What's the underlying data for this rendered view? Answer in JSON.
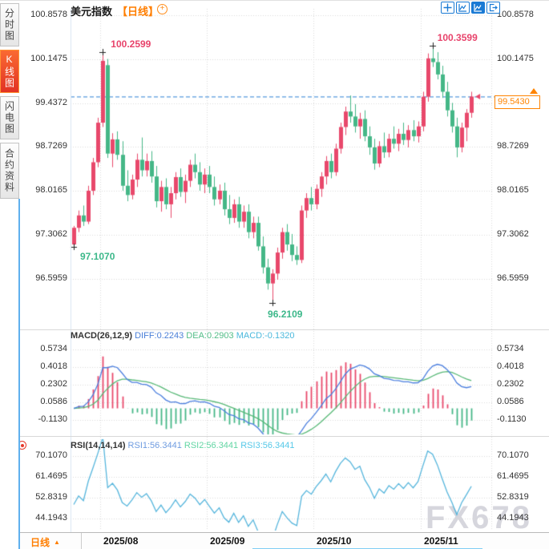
{
  "sidebar": {
    "tabs": [
      {
        "label": "分时图",
        "active": false
      },
      {
        "label": "K线图",
        "active": true
      },
      {
        "label": "闪电图",
        "active": false
      },
      {
        "label": "合约资料",
        "active": false
      }
    ]
  },
  "header": {
    "title": "美元指数",
    "period_tag": "【日线】",
    "plus_icon": "circle-plus"
  },
  "toolbar": {
    "icons": [
      "crosshair",
      "indicator-window",
      "chart-style",
      "exit-chart"
    ]
  },
  "ui": {
    "price_box": "99.5430",
    "macd_header": {
      "name": "MACD(26,12,9)",
      "diff": "DIFF:0.2243",
      "dea": "DEA:0.2903",
      "macd": "MACD:-0.1320"
    },
    "rsi_header": {
      "name": "RSI(14,14,14)",
      "rsi1": "RSI1:56.3441",
      "rsi2": "RSI2:56.3441",
      "rsi3": "RSI3:56.3441"
    },
    "bottom": {
      "period": "日线",
      "months": [
        "2025/08",
        "2025/09",
        "2025/10",
        "2025/11"
      ]
    },
    "watermark": "FX678",
    "indicator_icon": "red-circle-dot"
  },
  "chart_data": {
    "type": "candlestick",
    "title": "美元指数 日线 (US Dollar Index, daily)",
    "price_axis": [
      "100.8578",
      "100.1475",
      "99.4372",
      "98.7269",
      "98.0165",
      "97.3062",
      "96.5959"
    ],
    "current_price": 99.543,
    "current_price_label": "99.5430",
    "x_months": [
      "2025/08",
      "2025/09",
      "2025/10",
      "2025/11"
    ],
    "month_start_indices": [
      6,
      28,
      50,
      72
    ],
    "candles_format": [
      "open",
      "high",
      "low",
      "close"
    ],
    "candles": [
      [
        97.15,
        97.45,
        97.107,
        97.42
      ],
      [
        97.42,
        97.7,
        97.35,
        97.62
      ],
      [
        97.62,
        97.78,
        97.45,
        97.52
      ],
      [
        97.52,
        98.1,
        97.48,
        98.02
      ],
      [
        98.02,
        98.55,
        97.95,
        98.48
      ],
      [
        98.48,
        99.2,
        98.4,
        99.12
      ],
      [
        99.12,
        100.2599,
        99.05,
        100.12
      ],
      [
        100.05,
        100.15,
        98.55,
        98.62
      ],
      [
        98.62,
        98.95,
        98.4,
        98.85
      ],
      [
        98.85,
        98.98,
        98.52,
        98.6
      ],
      [
        98.6,
        98.82,
        98.02,
        98.1
      ],
      [
        98.1,
        98.35,
        97.85,
        97.95
      ],
      [
        97.95,
        98.28,
        97.88,
        98.2
      ],
      [
        98.2,
        98.62,
        98.08,
        98.52
      ],
      [
        98.52,
        98.88,
        98.25,
        98.35
      ],
      [
        98.35,
        98.62,
        98.25,
        98.5
      ],
      [
        98.5,
        98.66,
        98.15,
        98.25
      ],
      [
        98.25,
        98.42,
        97.75,
        97.85
      ],
      [
        97.85,
        98.18,
        97.68,
        98.08
      ],
      [
        98.08,
        98.22,
        97.72,
        97.8
      ],
      [
        97.8,
        98.08,
        97.58,
        97.98
      ],
      [
        97.98,
        98.32,
        97.88,
        98.24
      ],
      [
        98.24,
        98.38,
        97.92,
        98.0
      ],
      [
        98.0,
        98.28,
        97.82,
        98.18
      ],
      [
        98.18,
        98.52,
        98.08,
        98.44
      ],
      [
        98.44,
        98.62,
        98.22,
        98.32
      ],
      [
        98.32,
        98.48,
        98.02,
        98.12
      ],
      [
        98.12,
        98.38,
        97.98,
        98.28
      ],
      [
        98.28,
        98.42,
        97.98,
        98.08
      ],
      [
        98.08,
        98.25,
        97.78,
        97.88
      ],
      [
        97.88,
        98.12,
        97.8,
        98.02
      ],
      [
        98.02,
        98.15,
        97.62,
        97.72
      ],
      [
        97.72,
        97.95,
        97.48,
        97.58
      ],
      [
        97.58,
        97.88,
        97.5,
        97.8
      ],
      [
        97.8,
        97.92,
        97.42,
        97.52
      ],
      [
        97.52,
        97.78,
        97.42,
        97.68
      ],
      [
        97.68,
        97.8,
        97.25,
        97.35
      ],
      [
        97.35,
        97.6,
        97.25,
        97.5
      ],
      [
        97.5,
        97.6,
        97.05,
        97.12
      ],
      [
        97.12,
        97.28,
        96.68,
        96.78
      ],
      [
        96.78,
        96.92,
        96.42,
        96.52
      ],
      [
        96.52,
        96.75,
        96.2109,
        96.68
      ],
      [
        96.68,
        97.1,
        96.58,
        97.02
      ],
      [
        97.02,
        97.42,
        96.92,
        97.35
      ],
      [
        97.35,
        97.48,
        97.05,
        97.15
      ],
      [
        97.15,
        97.32,
        96.88,
        96.98
      ],
      [
        96.98,
        97.12,
        96.82,
        96.9
      ],
      [
        96.9,
        97.78,
        96.85,
        97.7
      ],
      [
        97.7,
        97.98,
        97.58,
        97.9
      ],
      [
        97.9,
        98.08,
        97.7,
        97.8
      ],
      [
        97.8,
        98.12,
        97.72,
        98.05
      ],
      [
        98.05,
        98.32,
        97.92,
        98.25
      ],
      [
        98.25,
        98.58,
        98.12,
        98.5
      ],
      [
        98.5,
        98.62,
        98.22,
        98.32
      ],
      [
        98.32,
        98.78,
        98.26,
        98.7
      ],
      [
        98.7,
        99.12,
        98.62,
        99.05
      ],
      [
        99.05,
        99.38,
        98.92,
        99.3
      ],
      [
        99.3,
        99.56,
        99.12,
        99.22
      ],
      [
        99.22,
        99.42,
        98.96,
        99.06
      ],
      [
        99.06,
        99.28,
        98.86,
        99.18
      ],
      [
        99.18,
        99.32,
        98.82,
        98.9
      ],
      [
        98.9,
        99.06,
        98.6,
        98.72
      ],
      [
        98.72,
        98.86,
        98.36,
        98.46
      ],
      [
        98.46,
        98.82,
        98.4,
        98.74
      ],
      [
        98.74,
        98.96,
        98.55,
        98.64
      ],
      [
        98.64,
        98.94,
        98.56,
        98.86
      ],
      [
        98.86,
        99.06,
        98.7,
        98.78
      ],
      [
        98.78,
        99.02,
        98.66,
        98.94
      ],
      [
        98.94,
        99.12,
        98.76,
        98.84
      ],
      [
        98.84,
        99.08,
        98.72,
        99.0
      ],
      [
        99.0,
        99.16,
        98.82,
        98.9
      ],
      [
        98.9,
        99.14,
        98.8,
        99.06
      ],
      [
        99.06,
        99.62,
        98.98,
        99.54
      ],
      [
        99.54,
        100.24,
        99.46,
        100.16
      ],
      [
        100.16,
        100.3599,
        100.02,
        100.1
      ],
      [
        100.1,
        100.26,
        99.82,
        99.9
      ],
      [
        99.9,
        100.04,
        99.52,
        99.62
      ],
      [
        99.62,
        99.78,
        99.22,
        99.32
      ],
      [
        99.32,
        99.44,
        98.96,
        99.06
      ],
      [
        99.06,
        99.2,
        98.56,
        98.72
      ],
      [
        98.72,
        99.12,
        98.64,
        99.04
      ],
      [
        99.04,
        99.34,
        98.82,
        99.28
      ],
      [
        99.28,
        99.62,
        99.2,
        99.543
      ]
    ],
    "landmarks": {
      "high1": {
        "index": 6,
        "price": 100.2599,
        "label": "100.2599"
      },
      "high2": {
        "index": 74,
        "price": 100.3599,
        "label": "100.3599"
      },
      "low1": {
        "index": 0,
        "price": 97.107,
        "label": "97.1070"
      },
      "low2": {
        "index": 41,
        "price": 96.2109,
        "label": "96.2109"
      }
    },
    "macd": {
      "params": [
        26,
        12,
        9
      ],
      "diff": 0.2243,
      "dea": 0.2903,
      "macd": -0.132,
      "axis": [
        "0.5734",
        "0.4018",
        "0.2302",
        "0.0586",
        "-0.1130"
      ]
    },
    "rsi": {
      "params": [
        14,
        14,
        14
      ],
      "rsi1": 56.3441,
      "rsi2": 56.3441,
      "rsi3": 56.3441,
      "axis": [
        "70.1070",
        "61.4695",
        "52.8319",
        "44.1943"
      ]
    },
    "colors": {
      "up": "#e8486b",
      "down": "#45b787",
      "diff_line": "#4a7ede",
      "dea_line": "#57b876",
      "rsi_line": "#55b5dc",
      "price_line": "#2b7fd4",
      "accent_orange": "#ff8400",
      "header_diff": "#4a7fd8",
      "header_dea": "#52bd87",
      "header_macd": "#4ab8dc",
      "header_rsi1": "#6f9ce0",
      "header_rsi2": "#63d6a4",
      "header_rsi3": "#55c8e8",
      "grid": "#dadada",
      "toolbar_blue": "#1a7ad4"
    },
    "legend_position": "top-left-of-each-pane",
    "grid": true
  }
}
